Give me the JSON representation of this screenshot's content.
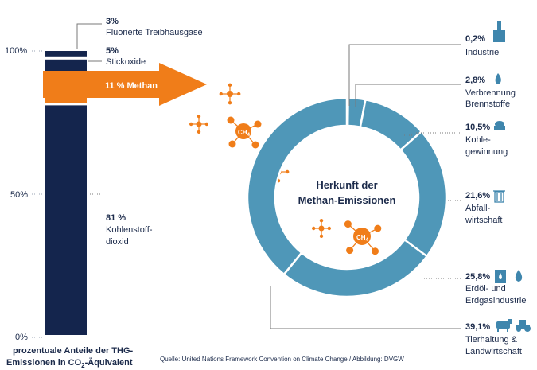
{
  "chart_data": [
    {
      "type": "bar",
      "subtype": "stacked-100",
      "ylim": [
        0,
        100
      ],
      "y_ticks": [
        "0%",
        "50%",
        "100%"
      ],
      "caption_line1": "prozentuale Anteile der THG-",
      "caption_line2_prefix": "Emissionen in CO",
      "caption_line2_sub": "2",
      "caption_line2_suffix": "-Äquivalent",
      "segments": [
        {
          "label_pct": "81 %",
          "label_line1": "Kohlenstoff-",
          "label_line2": "dioxid",
          "value": 81,
          "color": "#14254d"
        },
        {
          "label_pct": "11 % Methan",
          "label_line1": "",
          "label_line2": "",
          "value": 11,
          "color": "#f07d19"
        },
        {
          "label_pct": "5%",
          "label_line1": "Stickoxide",
          "label_line2": "",
          "value": 5,
          "color": "#14254d"
        },
        {
          "label_pct": "3%",
          "label_line1": "Fluorierte Treibhausgase",
          "label_line2": "",
          "value": 3,
          "color": "#14254d"
        }
      ]
    },
    {
      "type": "pie",
      "subtype": "donut",
      "center_line1": "Herkunft der",
      "center_line2": "Methan-Emissionen",
      "color": "#4f97b8",
      "slices": [
        {
          "pct": "0,2%",
          "name_line1": "Industrie",
          "name_line2": "",
          "value": 0.2,
          "icon": "factory-icon"
        },
        {
          "pct": "2,8%",
          "name_line1": "Verbrennung",
          "name_line2": "Brennstoffe",
          "value": 2.8,
          "icon": "flame-icon"
        },
        {
          "pct": "10,5%",
          "name_line1": "Kohle-",
          "name_line2": "gewinnung",
          "value": 10.5,
          "icon": "coal-cart-icon"
        },
        {
          "pct": "21,6%",
          "name_line1": "Abfall-",
          "name_line2": "wirtschaft",
          "value": 21.6,
          "icon": "trash-can-icon"
        },
        {
          "pct": "25,8%",
          "name_line1": "Erdöl- und",
          "name_line2": "Erdgasindustrie",
          "value": 25.8,
          "icon": "oil-barrel-flame-icon"
        },
        {
          "pct": "39,1%",
          "name_line1": "Tierhaltung &",
          "name_line2": "Landwirtschaft",
          "value": 39.1,
          "icon": "cow-tractor-icon"
        }
      ]
    }
  ],
  "source_text": "Quelle: United Nations Framework Convention on Climate Change / Abbildung: DVGW",
  "molecule_label": "CH",
  "molecule_sub": "4",
  "colors": {
    "navy": "#14254d",
    "orange": "#f07d19",
    "teal": "#4f97b8",
    "grey": "#7a7a7a"
  }
}
